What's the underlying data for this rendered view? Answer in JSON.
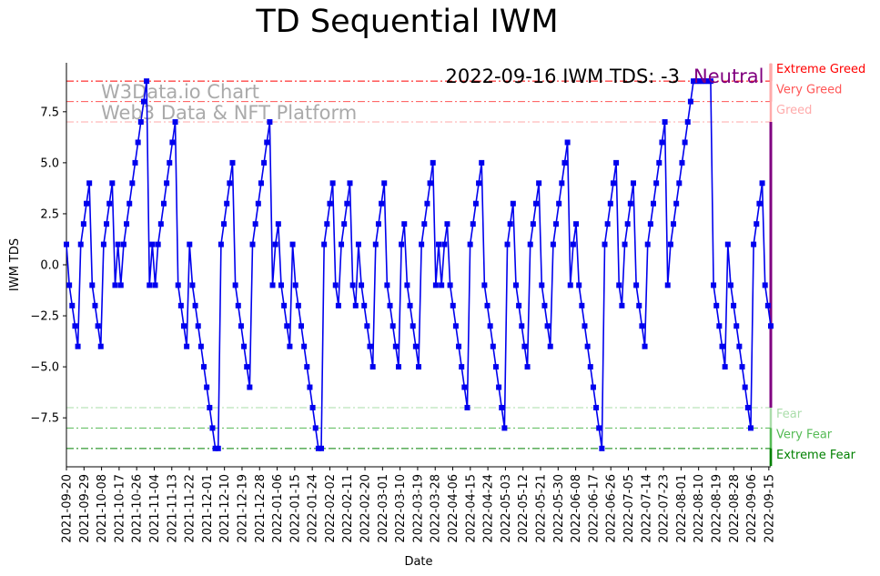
{
  "chart_data": {
    "type": "line",
    "title": "TD Sequential IWM",
    "xlabel": "Date",
    "ylabel": "IWM TDS",
    "ylim": [
      -9.9,
      9.9
    ],
    "yticks": [
      -7.5,
      -5.0,
      -2.5,
      0.0,
      2.5,
      5.0,
      7.5
    ],
    "ytick_labels": [
      "−7.5",
      "−5.0",
      "−2.5",
      "0.0",
      "2.5",
      "5.0",
      "7.5"
    ],
    "xstart": "2021-09-20",
    "xend": "2022-09-16",
    "xticks": [
      "2021-09-20",
      "2021-09-29",
      "2021-10-08",
      "2021-10-17",
      "2021-10-26",
      "2021-11-04",
      "2021-11-13",
      "2021-11-22",
      "2021-12-01",
      "2021-12-10",
      "2021-12-19",
      "2021-12-28",
      "2022-01-06",
      "2022-01-15",
      "2022-01-24",
      "2022-02-02",
      "2022-02-11",
      "2022-02-20",
      "2022-03-01",
      "2022-03-10",
      "2022-03-19",
      "2022-03-28",
      "2022-04-06",
      "2022-04-15",
      "2022-04-24",
      "2022-05-03",
      "2022-05-12",
      "2022-05-21",
      "2022-05-30",
      "2022-06-08",
      "2022-06-17",
      "2022-06-26",
      "2022-07-05",
      "2022-07-14",
      "2022-07-23",
      "2022-08-01",
      "2022-08-10",
      "2022-08-19",
      "2022-08-28",
      "2022-09-06",
      "2022-09-15"
    ],
    "annotation": "2022-09-16 IWM TDS: -3",
    "status": "Neutral",
    "status_color": "#800080",
    "watermark": [
      "W3Data.io Chart",
      "Web3 Data & NFT Platform"
    ],
    "thresholds": [
      {
        "label": "Extreme Greed",
        "value": 9,
        "color": "#ff0000"
      },
      {
        "label": "Very Greed",
        "value": 8,
        "color": "#ff5555"
      },
      {
        "label": "Greed",
        "value": 7,
        "color": "#ffaaaa"
      },
      {
        "label": "Fear",
        "value": -7,
        "color": "#aaddaa"
      },
      {
        "label": "Very Fear",
        "value": -8,
        "color": "#55bb55"
      },
      {
        "label": "Extreme Fear",
        "value": -9,
        "color": "#008000"
      }
    ],
    "series": [
      {
        "name": "IWM TDS",
        "color": "#0000ee",
        "values": [
          1,
          -1,
          -2,
          -3,
          -4,
          1,
          2,
          3,
          4,
          -1,
          -2,
          -3,
          -4,
          1,
          2,
          3,
          4,
          -1,
          1,
          -1,
          1,
          2,
          3,
          4,
          5,
          6,
          7,
          8,
          9,
          -1,
          1,
          -1,
          1,
          2,
          3,
          4,
          5,
          6,
          7,
          -1,
          -2,
          -3,
          -4,
          1,
          -1,
          -2,
          -3,
          -4,
          -5,
          -6,
          -7,
          -8,
          -9,
          -9,
          1,
          2,
          3,
          4,
          5,
          -1,
          -2,
          -3,
          -4,
          -5,
          -6,
          1,
          2,
          3,
          4,
          5,
          6,
          7,
          -1,
          1,
          2,
          -1,
          -2,
          -3,
          -4,
          1,
          -1,
          -2,
          -3,
          -4,
          -5,
          -6,
          -7,
          -8,
          -9,
          -9,
          1,
          2,
          3,
          4,
          -1,
          -2,
          1,
          2,
          3,
          4,
          -1,
          -2,
          1,
          -1,
          -2,
          -3,
          -4,
          -5,
          1,
          2,
          3,
          4,
          -1,
          -2,
          -3,
          -4,
          -5,
          1,
          2,
          -1,
          -2,
          -3,
          -4,
          -5,
          1,
          2,
          3,
          4,
          5,
          -1,
          1,
          -1,
          1,
          2,
          -1,
          -2,
          -3,
          -4,
          -5,
          -6,
          -7,
          1,
          2,
          3,
          4,
          5,
          -1,
          -2,
          -3,
          -4,
          -5,
          -6,
          -7,
          -8,
          1,
          2,
          3,
          -1,
          -2,
          -3,
          -4,
          -5,
          1,
          2,
          3,
          4,
          -1,
          -2,
          -3,
          -4,
          1,
          2,
          3,
          4,
          5,
          6,
          -1,
          1,
          2,
          -1,
          -2,
          -3,
          -4,
          -5,
          -6,
          -7,
          -8,
          -9,
          1,
          2,
          3,
          4,
          5,
          -1,
          -2,
          1,
          2,
          3,
          4,
          -1,
          -2,
          -3,
          -4,
          1,
          2,
          3,
          4,
          5,
          6,
          7,
          -1,
          1,
          2,
          3,
          4,
          5,
          6,
          7,
          8,
          9,
          9,
          9,
          9,
          9,
          9,
          9,
          -1,
          -2,
          -3,
          -4,
          -5,
          1,
          -1,
          -2,
          -3,
          -4,
          -5,
          -6,
          -7,
          -8,
          1,
          2,
          3,
          4,
          -1,
          -2,
          -3
        ]
      }
    ]
  }
}
